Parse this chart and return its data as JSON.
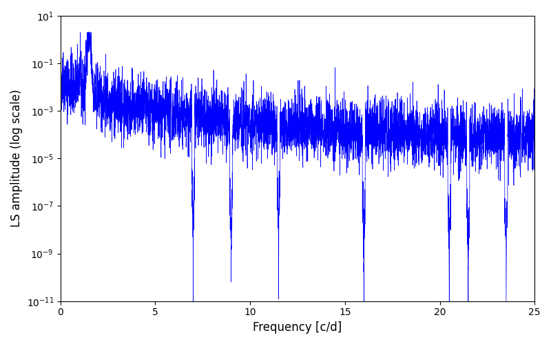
{
  "xlabel": "Frequency [c/d]",
  "ylabel": "LS amplitude (log scale)",
  "title": "",
  "xlim": [
    0,
    25
  ],
  "ylim_log": [
    -11,
    1
  ],
  "line_color": "blue",
  "background_color": "#ffffff",
  "figsize": [
    8.0,
    5.0
  ],
  "dpi": 100,
  "seed": 42,
  "num_points": 5000,
  "peak_freq": 1.5,
  "peak_amp": 1.0
}
